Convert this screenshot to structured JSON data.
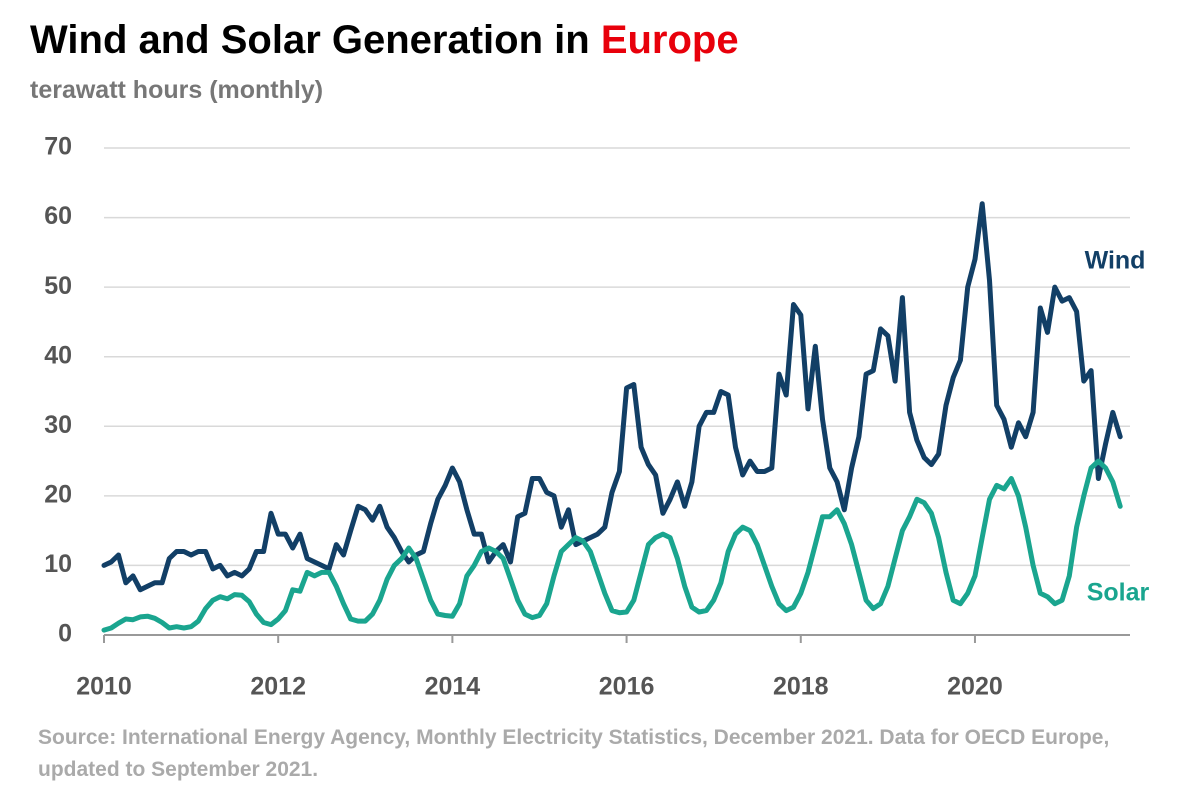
{
  "chart_data": {
    "type": "line",
    "title": [
      "Wind and Solar Generation in",
      "Europe"
    ],
    "title_highlight_color": "#e8000b",
    "subtitle": "terawatt hours (monthly)",
    "source": "Source: International Energy Agency, Monthly Electricity Statistics, December 2021. Data for OECD Europe, updated to September 2021.",
    "x": [
      2010,
      2010.083,
      2010.167,
      2010.25,
      2010.333,
      2010.417,
      2010.5,
      2010.583,
      2010.667,
      2010.75,
      2010.833,
      2010.917,
      2011,
      2011.083,
      2011.167,
      2011.25,
      2011.333,
      2011.417,
      2011.5,
      2011.583,
      2011.667,
      2011.75,
      2011.833,
      2011.917,
      2012,
      2012.083,
      2012.167,
      2012.25,
      2012.333,
      2012.417,
      2012.5,
      2012.583,
      2012.667,
      2012.75,
      2012.833,
      2012.917,
      2013,
      2013.083,
      2013.167,
      2013.25,
      2013.333,
      2013.417,
      2013.5,
      2013.583,
      2013.667,
      2013.75,
      2013.833,
      2013.917,
      2014,
      2014.083,
      2014.167,
      2014.25,
      2014.333,
      2014.417,
      2014.5,
      2014.583,
      2014.667,
      2014.75,
      2014.833,
      2014.917,
      2015,
      2015.083,
      2015.167,
      2015.25,
      2015.333,
      2015.417,
      2015.5,
      2015.583,
      2015.667,
      2015.75,
      2015.833,
      2015.917,
      2016,
      2016.083,
      2016.167,
      2016.25,
      2016.333,
      2016.417,
      2016.5,
      2016.583,
      2016.667,
      2016.75,
      2016.833,
      2016.917,
      2017,
      2017.083,
      2017.167,
      2017.25,
      2017.333,
      2017.417,
      2017.5,
      2017.583,
      2017.667,
      2017.75,
      2017.833,
      2017.917,
      2018,
      2018.083,
      2018.167,
      2018.25,
      2018.333,
      2018.417,
      2018.5,
      2018.583,
      2018.667,
      2018.75,
      2018.833,
      2018.917,
      2019,
      2019.083,
      2019.167,
      2019.25,
      2019.333,
      2019.417,
      2019.5,
      2019.583,
      2019.667,
      2019.75,
      2019.833,
      2019.917,
      2020,
      2020.083,
      2020.167,
      2020.25,
      2020.333,
      2020.417,
      2020.5,
      2020.583,
      2020.667,
      2020.75,
      2020.833,
      2020.917,
      2021,
      2021.083,
      2021.167,
      2021.25,
      2021.333,
      2021.417,
      2021.5,
      2021.583,
      2021.667
    ],
    "series": [
      {
        "name": "Wind",
        "color": "#123f66",
        "values": [
          10,
          10.5,
          11.5,
          7.5,
          8.5,
          6.5,
          7,
          7.5,
          7.5,
          11,
          12,
          12,
          11.5,
          12,
          12,
          9.5,
          10,
          8.5,
          9,
          8.5,
          9.5,
          12,
          12,
          17.5,
          14.5,
          14.5,
          12.5,
          14.5,
          11,
          10.5,
          10,
          9.5,
          13,
          11.5,
          15,
          18.5,
          18,
          16.5,
          18.5,
          15.5,
          14,
          12,
          10.5,
          11.5,
          12,
          16,
          19.5,
          21.5,
          24,
          22,
          18,
          14.5,
          14.5,
          10.5,
          12,
          13,
          10.5,
          17,
          17.5,
          22.5,
          22.5,
          20.5,
          20,
          15.5,
          18,
          13,
          13.5,
          14,
          14.5,
          15.5,
          20.5,
          23.5,
          35.5,
          36,
          27,
          24.5,
          23,
          17.5,
          19.5,
          22,
          18.5,
          22,
          30,
          32,
          32,
          35,
          34.5,
          27,
          23,
          25,
          23.5,
          23.5,
          24,
          37.5,
          34.5,
          47.5,
          46,
          32.5,
          41.5,
          31,
          24,
          22,
          18,
          24,
          28.5,
          37.5,
          38,
          44,
          43,
          36.5,
          48.5,
          32,
          28,
          25.5,
          24.5,
          26,
          33,
          37,
          39.5,
          50,
          54,
          62,
          51,
          33,
          31,
          27,
          30.5,
          28.5,
          32,
          47,
          43.5,
          50,
          48,
          48.5,
          46.5,
          36.5,
          38,
          22.5,
          27.5,
          32,
          28.5
        ]
      },
      {
        "name": "Solar",
        "color": "#1aa58f",
        "values": [
          0.7,
          1,
          1.7,
          2.3,
          2.2,
          2.6,
          2.7,
          2.4,
          1.8,
          1,
          1.2,
          1,
          1.2,
          2,
          3.8,
          5,
          5.5,
          5.2,
          5.8,
          5.7,
          4.8,
          3,
          1.8,
          1.5,
          2.3,
          3.5,
          6.5,
          6.3,
          9,
          8.5,
          9,
          9,
          7,
          4.5,
          2.3,
          2,
          2,
          3,
          5,
          8,
          10,
          11,
          12.5,
          11,
          8,
          5,
          3,
          2.8,
          2.7,
          4.5,
          8.5,
          10,
          12,
          12.5,
          12,
          11,
          8,
          5,
          3,
          2.5,
          2.8,
          4.5,
          8.5,
          12,
          13,
          14,
          13.5,
          12,
          9,
          6,
          3.5,
          3.2,
          3.3,
          5,
          9,
          13,
          14,
          14.5,
          14,
          11,
          7,
          4,
          3.3,
          3.5,
          5,
          7.5,
          12,
          14.5,
          15.5,
          15,
          13,
          10,
          7,
          4.5,
          3.5,
          4,
          6,
          9,
          13,
          17,
          17,
          18,
          16,
          13,
          9,
          5,
          3.8,
          4.5,
          7,
          11,
          15,
          17,
          19.5,
          19,
          17.5,
          14,
          9,
          5,
          4.5,
          6,
          8.5,
          14,
          19.5,
          21.5,
          21,
          22.5,
          20,
          15.5,
          10,
          6,
          5.5,
          4.5,
          5,
          8.5,
          15.5,
          20,
          24,
          25,
          24,
          22,
          18.5
        ]
      }
    ],
    "xlim": [
      2010,
      2021.78
    ],
    "xticks": [
      2010,
      2012,
      2014,
      2016,
      2018,
      2020
    ],
    "ylim": [
      0,
      70
    ],
    "yticks": [
      0,
      10,
      20,
      30,
      40,
      50,
      60,
      70
    ],
    "grid": true
  }
}
